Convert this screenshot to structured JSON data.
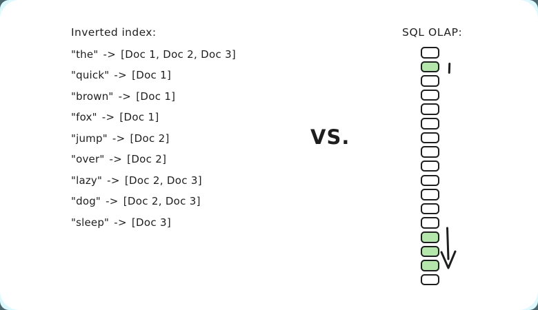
{
  "colors": {
    "outer-bg": "#4b666d",
    "halo": "#ddf9fe",
    "card-bg": "#ffffff",
    "ink": "#1e1e1e",
    "highlight": "#b5e7ad"
  },
  "inverted_index": {
    "title": "Inverted index:",
    "maps_to": "->",
    "entries": [
      {
        "term": "the",
        "docs": [
          "Doc 1",
          "Doc 2",
          "Doc 3"
        ]
      },
      {
        "term": "quick",
        "docs": [
          "Doc 1"
        ]
      },
      {
        "term": "brown",
        "docs": [
          "Doc 1"
        ]
      },
      {
        "term": "fox",
        "docs": [
          "Doc 1"
        ]
      },
      {
        "term": "jump",
        "docs": [
          "Doc 2"
        ]
      },
      {
        "term": "over",
        "docs": [
          "Doc 2"
        ]
      },
      {
        "term": "lazy",
        "docs": [
          "Doc 2",
          "Doc 3"
        ]
      },
      {
        "term": "dog",
        "docs": [
          "Doc 2",
          "Doc 3"
        ]
      },
      {
        "term": "sleep",
        "docs": [
          "Doc 3"
        ]
      }
    ]
  },
  "versus_label": "VS.",
  "sql_olap": {
    "title": "SQL OLAP:",
    "box_states": [
      "plain",
      "highlighted",
      "plain",
      "plain",
      "plain",
      "plain",
      "plain",
      "plain",
      "plain",
      "plain",
      "plain",
      "plain",
      "plain",
      "highlighted",
      "highlighted",
      "highlighted",
      "plain"
    ],
    "markers": {
      "single_row_read": "tick next to 2nd box",
      "range_scan": "down arrow spanning 14th-16th boxes"
    }
  }
}
